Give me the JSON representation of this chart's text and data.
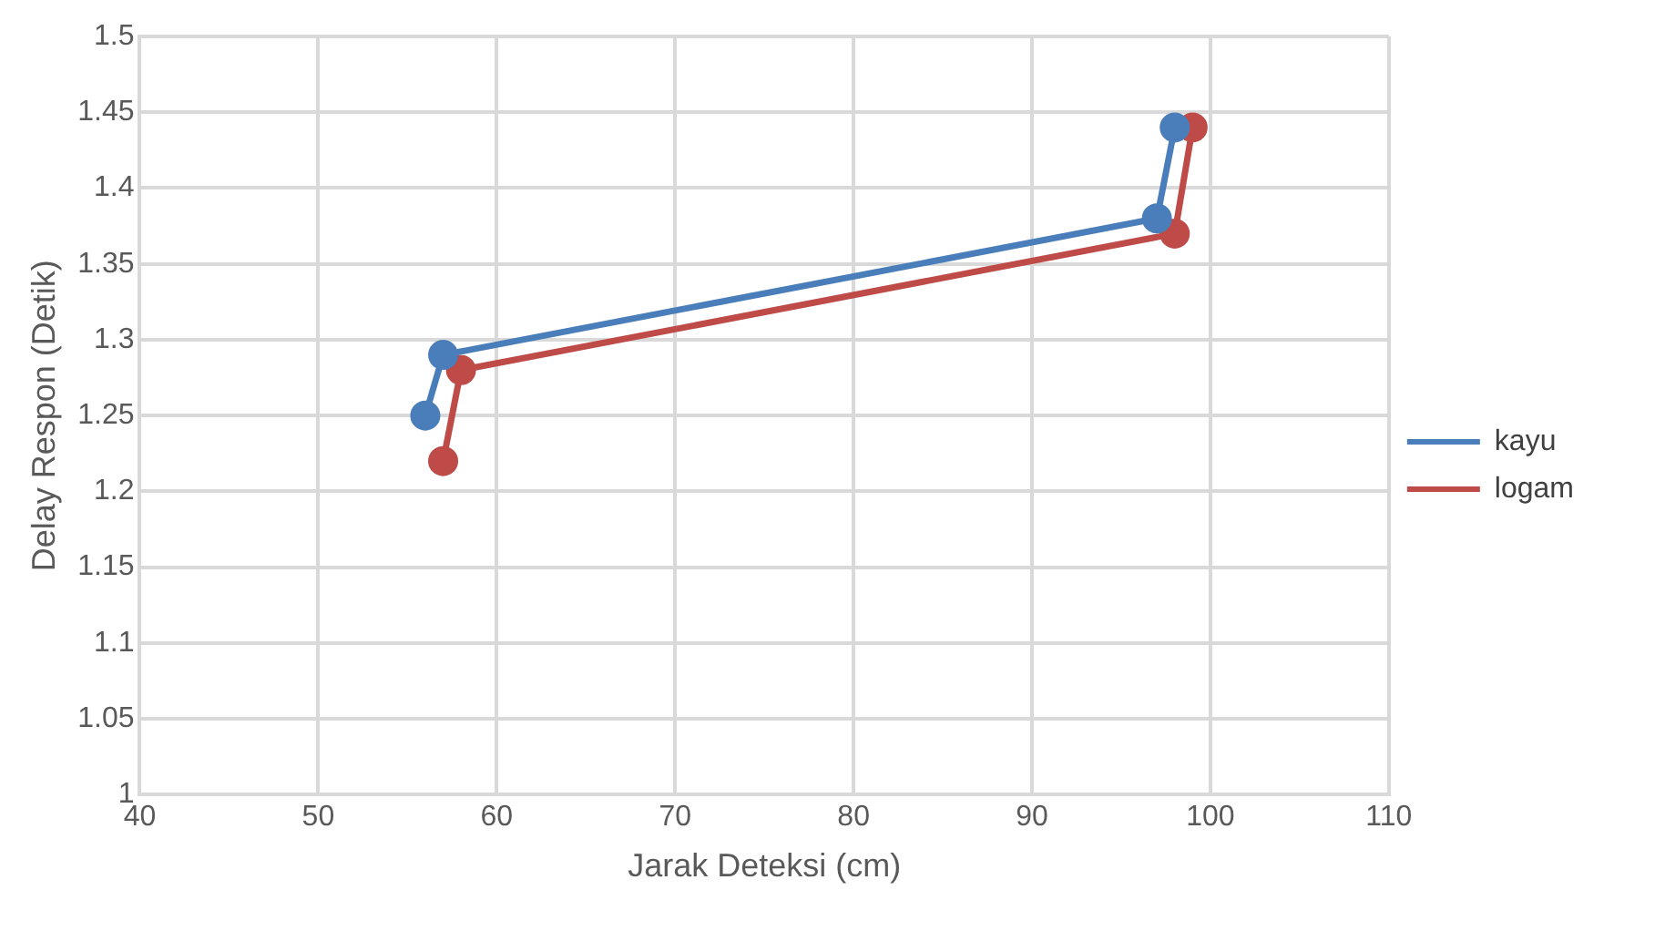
{
  "chart_data": {
    "type": "line",
    "xlabel": "Jarak Deteksi (cm)",
    "ylabel": "Delay Respon (Detik)",
    "xlim": [
      40,
      110
    ],
    "xticks": [
      40,
      50,
      60,
      70,
      80,
      90,
      100,
      110
    ],
    "ylim": [
      1,
      1.5
    ],
    "yticks": [
      {
        "value": 1,
        "label": "1"
      },
      {
        "value": 1.05,
        "label": "1.05"
      },
      {
        "value": 1.1,
        "label": "1.1"
      },
      {
        "value": 1.15,
        "label": "1.15"
      },
      {
        "value": 1.2,
        "label": "1.2"
      },
      {
        "value": 1.25,
        "label": "1.25"
      },
      {
        "value": 1.3,
        "label": "1.3"
      },
      {
        "value": 1.35,
        "label": "1.35"
      },
      {
        "value": 1.4,
        "label": "1.4"
      },
      {
        "value": 1.45,
        "label": "1.45"
      },
      {
        "value": 1.5,
        "label": "1.5"
      }
    ],
    "grid": true,
    "legend": "right",
    "marker": "circle",
    "line_style": "solid",
    "series": [
      {
        "name": "kayu",
        "color": "#4a7ebb",
        "x": [
          56,
          57,
          97,
          98
        ],
        "values": [
          1.25,
          1.29,
          1.38,
          1.44
        ]
      },
      {
        "name": "logam",
        "color": "#be4b48",
        "x": [
          57,
          58,
          98,
          99
        ],
        "values": [
          1.22,
          1.28,
          1.37,
          1.44
        ]
      }
    ]
  }
}
